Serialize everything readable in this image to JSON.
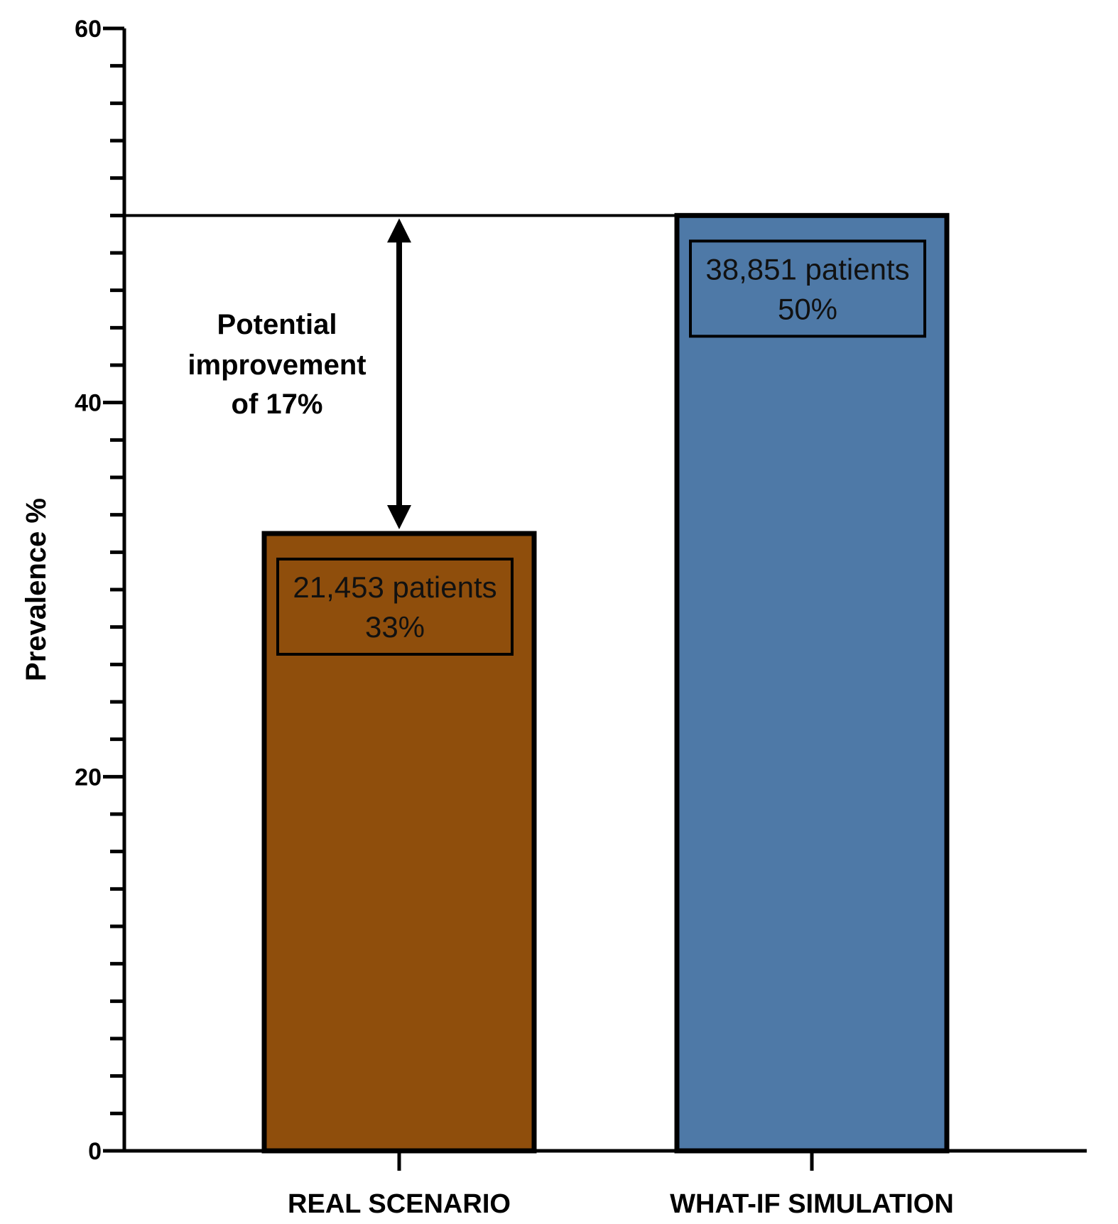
{
  "chart_data": {
    "type": "bar",
    "categories": [
      "REAL SCENARIO",
      "WHAT-IF SIMULATION"
    ],
    "values": [
      33,
      50
    ],
    "bar_colors": [
      "#8f4e0c",
      "#4e79a7"
    ],
    "ylabel": "Prevalence %",
    "xlabel": "",
    "ylim": [
      0,
      60
    ],
    "yticks": [
      0,
      20,
      40,
      60
    ],
    "ytick_labels": [
      "0",
      "20",
      "40",
      "60"
    ],
    "minor_tick_step": 2,
    "grid": false,
    "data_labels": [
      {
        "line1": "21,453 patients",
        "line2": "33%"
      },
      {
        "line1": "38,851 patients",
        "line2": "50%"
      }
    ],
    "reference_line": {
      "value": 50
    },
    "annotation": {
      "lines": [
        "Potential",
        "improvement",
        "of 17%"
      ],
      "from": 33,
      "to": 50
    }
  }
}
